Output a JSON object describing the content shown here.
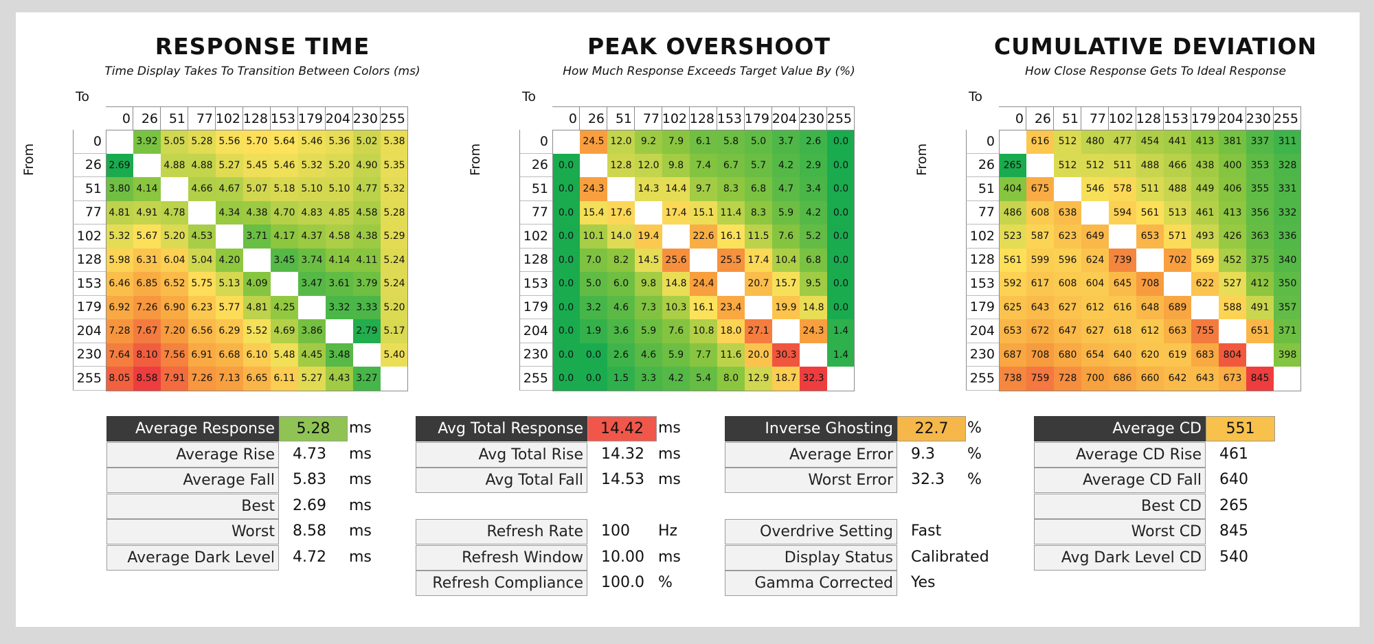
{
  "chart_data": [
    {
      "type": "heatmap",
      "title": "RESPONSE TIME",
      "subtitle": "Time Display Takes To Transition Between Colors (ms)",
      "x_axis_label": "To",
      "y_axis_label": "From",
      "x_categories": [
        "0",
        "26",
        "51",
        "77",
        "102",
        "128",
        "153",
        "179",
        "204",
        "230",
        "255"
      ],
      "y_categories": [
        "0",
        "26",
        "51",
        "77",
        "102",
        "128",
        "153",
        "179",
        "204",
        "230",
        "255"
      ],
      "values": [
        [
          null,
          "3.92",
          "5.05",
          "5.28",
          "5.56",
          "5.70",
          "5.64",
          "5.46",
          "5.36",
          "5.02",
          "5.38"
        ],
        [
          "2.69",
          null,
          "4.88",
          "4.88",
          "5.27",
          "5.45",
          "5.46",
          "5.32",
          "5.20",
          "4.90",
          "5.35"
        ],
        [
          "3.80",
          "4.14",
          null,
          "4.66",
          "4.67",
          "5.07",
          "5.18",
          "5.10",
          "5.10",
          "4.77",
          "5.32"
        ],
        [
          "4.81",
          "4.91",
          "4.78",
          null,
          "4.34",
          "4.38",
          "4.70",
          "4.83",
          "4.85",
          "4.58",
          "5.28"
        ],
        [
          "5.32",
          "5.67",
          "5.20",
          "4.53",
          null,
          "3.71",
          "4.17",
          "4.37",
          "4.58",
          "4.38",
          "5.29"
        ],
        [
          "5.98",
          "6.31",
          "6.04",
          "5.04",
          "4.20",
          null,
          "3.45",
          "3.74",
          "4.14",
          "4.11",
          "5.24"
        ],
        [
          "6.46",
          "6.85",
          "6.52",
          "5.75",
          "5.13",
          "4.09",
          null,
          "3.47",
          "3.61",
          "3.79",
          "5.24"
        ],
        [
          "6.92",
          "7.26",
          "6.90",
          "6.23",
          "5.77",
          "4.81",
          "4.25",
          null,
          "3.32",
          "3.33",
          "5.20"
        ],
        [
          "7.28",
          "7.67",
          "7.20",
          "6.56",
          "6.29",
          "5.52",
          "4.69",
          "3.86",
          null,
          "2.79",
          "5.17"
        ],
        [
          "7.64",
          "8.10",
          "7.56",
          "6.91",
          "6.68",
          "6.10",
          "5.48",
          "4.45",
          "3.48",
          null,
          "5.40"
        ],
        [
          "8.05",
          "8.58",
          "7.91",
          "7.26",
          "7.13",
          "6.65",
          "6.11",
          "5.27",
          "4.43",
          "3.27",
          null
        ]
      ],
      "color_range": [
        2.69,
        8.58
      ]
    },
    {
      "type": "heatmap",
      "title": "PEAK OVERSHOOT",
      "subtitle": "How Much Response Exceeds Target Value By (%)",
      "x_axis_label": "To",
      "y_axis_label": "From",
      "x_categories": [
        "0",
        "26",
        "51",
        "77",
        "102",
        "128",
        "153",
        "179",
        "204",
        "230",
        "255"
      ],
      "y_categories": [
        "0",
        "26",
        "51",
        "77",
        "102",
        "128",
        "153",
        "179",
        "204",
        "230",
        "255"
      ],
      "values": [
        [
          null,
          "24.5",
          "12.0",
          "9.2",
          "7.9",
          "6.1",
          "5.8",
          "5.0",
          "3.7",
          "2.6",
          "0.0"
        ],
        [
          "0.0",
          null,
          "12.8",
          "12.0",
          "9.8",
          "7.4",
          "6.7",
          "5.7",
          "4.2",
          "2.9",
          "0.0"
        ],
        [
          "0.0",
          "24.3",
          null,
          "14.3",
          "14.4",
          "9.7",
          "8.3",
          "6.8",
          "4.7",
          "3.4",
          "0.0"
        ],
        [
          "0.0",
          "15.4",
          "17.6",
          null,
          "17.4",
          "15.1",
          "11.4",
          "8.3",
          "5.9",
          "4.2",
          "0.0"
        ],
        [
          "0.0",
          "10.1",
          "14.0",
          "19.4",
          null,
          "22.6",
          "16.1",
          "11.5",
          "7.6",
          "5.2",
          "0.0"
        ],
        [
          "0.0",
          "7.0",
          "8.2",
          "14.5",
          "25.6",
          null,
          "25.5",
          "17.4",
          "10.4",
          "6.8",
          "0.0"
        ],
        [
          "0.0",
          "5.0",
          "6.0",
          "9.8",
          "14.8",
          "24.4",
          null,
          "20.7",
          "15.7",
          "9.5",
          "0.0"
        ],
        [
          "0.0",
          "3.2",
          "4.6",
          "7.3",
          "10.3",
          "16.1",
          "23.4",
          null,
          "19.9",
          "14.8",
          "0.0"
        ],
        [
          "0.0",
          "1.9",
          "3.6",
          "5.9",
          "7.6",
          "10.8",
          "18.0",
          "27.1",
          null,
          "24.3",
          "1.4"
        ],
        [
          "0.0",
          "0.0",
          "2.6",
          "4.6",
          "5.9",
          "7.7",
          "11.6",
          "20.0",
          "30.3",
          null,
          "1.4"
        ],
        [
          "0.0",
          "0.0",
          "1.5",
          "3.3",
          "4.2",
          "5.4",
          "8.0",
          "12.9",
          "18.7",
          "32.3",
          null
        ]
      ],
      "color_range": [
        0,
        32.3
      ]
    },
    {
      "type": "heatmap",
      "title": "CUMULATIVE DEVIATION",
      "subtitle": "How Close Response Gets To Ideal Response",
      "x_axis_label": "To",
      "y_axis_label": "From",
      "x_categories": [
        "0",
        "26",
        "51",
        "77",
        "102",
        "128",
        "153",
        "179",
        "204",
        "230",
        "255"
      ],
      "y_categories": [
        "0",
        "26",
        "51",
        "77",
        "102",
        "128",
        "153",
        "179",
        "204",
        "230",
        "255"
      ],
      "values": [
        [
          null,
          "616",
          "512",
          "480",
          "477",
          "454",
          "441",
          "413",
          "381",
          "337",
          "311"
        ],
        [
          "265",
          null,
          "512",
          "512",
          "511",
          "488",
          "466",
          "438",
          "400",
          "353",
          "328"
        ],
        [
          "404",
          "675",
          null,
          "546",
          "578",
          "511",
          "488",
          "449",
          "406",
          "355",
          "331"
        ],
        [
          "486",
          "608",
          "638",
          null,
          "594",
          "561",
          "513",
          "461",
          "413",
          "356",
          "332"
        ],
        [
          "523",
          "587",
          "623",
          "649",
          null,
          "653",
          "571",
          "493",
          "426",
          "363",
          "336"
        ],
        [
          "561",
          "599",
          "596",
          "624",
          "739",
          null,
          "702",
          "569",
          "452",
          "375",
          "340"
        ],
        [
          "592",
          "617",
          "608",
          "604",
          "645",
          "708",
          null,
          "622",
          "527",
          "412",
          "350"
        ],
        [
          "625",
          "643",
          "627",
          "612",
          "616",
          "648",
          "689",
          null,
          "588",
          "491",
          "357"
        ],
        [
          "653",
          "672",
          "647",
          "627",
          "618",
          "612",
          "663",
          "755",
          null,
          "651",
          "371"
        ],
        [
          "687",
          "708",
          "680",
          "654",
          "640",
          "620",
          "619",
          "683",
          "804",
          null,
          "398"
        ],
        [
          "738",
          "759",
          "728",
          "700",
          "686",
          "660",
          "642",
          "643",
          "673",
          "845",
          null
        ]
      ],
      "color_range": [
        265,
        845
      ]
    },
    {
      "type": "table",
      "rows": [
        {
          "label": "Average Response",
          "value": "5.28",
          "unit": "ms",
          "highlight_color": "#8fc455",
          "dark": true
        },
        {
          "label": "Average Rise",
          "value": "4.73",
          "unit": "ms"
        },
        {
          "label": "Average Fall",
          "value": "5.83",
          "unit": "ms"
        },
        {
          "label": "Best",
          "value": "2.69",
          "unit": "ms"
        },
        {
          "label": "Worst",
          "value": "8.58",
          "unit": "ms"
        },
        {
          "label": "Average Dark Level",
          "value": "4.72",
          "unit": "ms"
        }
      ]
    },
    {
      "type": "table",
      "rows": [
        {
          "label": "Avg Total Response",
          "value": "14.42",
          "unit": "ms",
          "highlight_color": "#f0574a",
          "dark": true
        },
        {
          "label": "Avg Total Rise",
          "value": "14.32",
          "unit": "ms"
        },
        {
          "label": "Avg Total Fall",
          "value": "14.53",
          "unit": "ms"
        },
        {
          "label": "Refresh Rate",
          "value": "100",
          "unit": "Hz",
          "gap_before": true
        },
        {
          "label": "Refresh Window",
          "value": "10.00",
          "unit": "ms"
        },
        {
          "label": "Refresh Compliance",
          "value": "100.0",
          "unit": "%"
        }
      ]
    },
    {
      "type": "table",
      "rows": [
        {
          "label": "Inverse Ghosting Rate",
          "value": "22.7",
          "unit": "%",
          "highlight_color": "#f5b74a",
          "dark": true
        },
        {
          "label": "Average Error",
          "value": "9.3",
          "unit": "%"
        },
        {
          "label": "Worst Error",
          "value": "32.3",
          "unit": "%"
        },
        {
          "label": "Overdrive Setting",
          "value": "Fast",
          "unit": "",
          "gap_before": true
        },
        {
          "label": "Display Status",
          "value": "Calibrated",
          "unit": ""
        },
        {
          "label": "Gamma Corrected",
          "value": "Yes",
          "unit": ""
        }
      ]
    },
    {
      "type": "table",
      "rows": [
        {
          "label": "Average CD",
          "value": "551",
          "unit": "",
          "highlight_color": "#f8c14b",
          "dark": true
        },
        {
          "label": "Average CD Rise",
          "value": "461",
          "unit": ""
        },
        {
          "label": "Average CD Fall",
          "value": "640",
          "unit": ""
        },
        {
          "label": "Best CD",
          "value": "265",
          "unit": ""
        },
        {
          "label": "Worst CD",
          "value": "845",
          "unit": ""
        },
        {
          "label": "Avg Dark Level CD",
          "value": "540",
          "unit": ""
        }
      ]
    }
  ],
  "colors": {
    "low": "#1aab4f",
    "mid_green": "#8cc63f",
    "mid": "#fde25b",
    "high_orange": "#f8a13f",
    "high": "#ee3d3f",
    "diagonal": "#ffffff"
  }
}
